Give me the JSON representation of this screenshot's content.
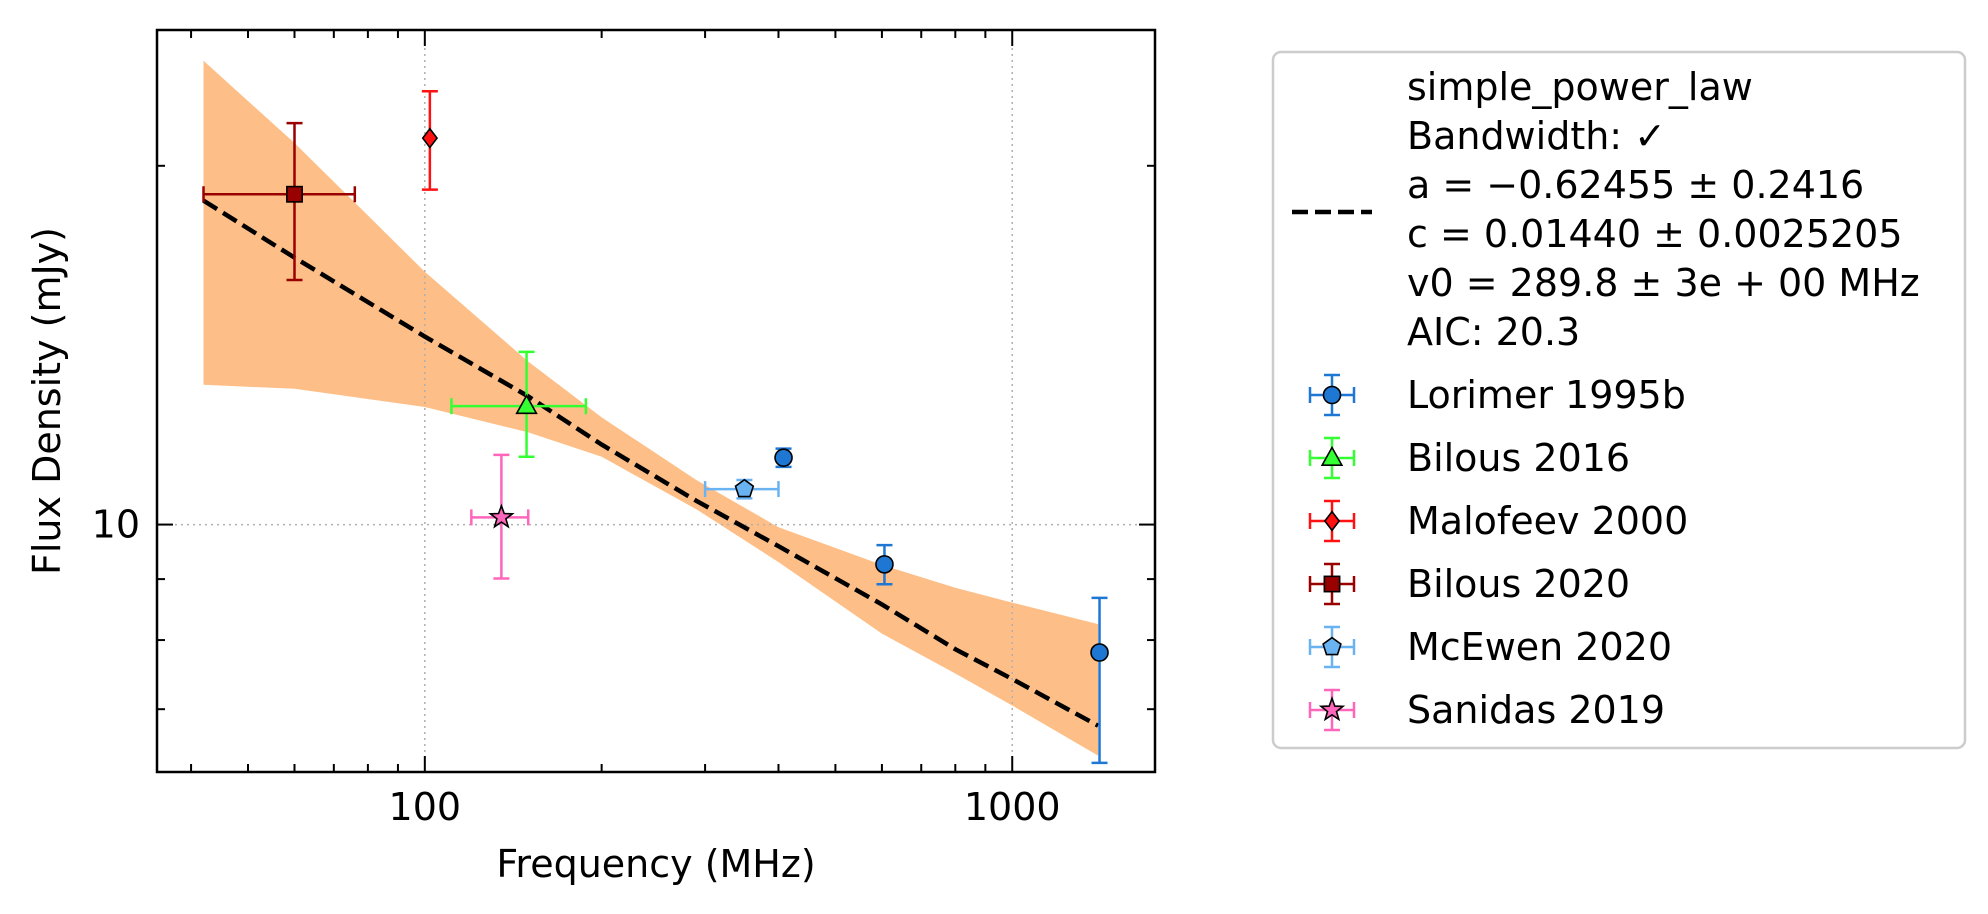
{
  "chart_data": {
    "type": "scatter",
    "xlabel": "Frequency (MHz)",
    "ylabel": "Flux Density (mJy)",
    "x_scale": "log",
    "y_scale": "log",
    "xlim": [
      35,
      1750
    ],
    "ylim": [
      6.2,
      26
    ],
    "x_ticks": [
      {
        "value": 100,
        "label": "100"
      },
      {
        "value": 1000,
        "label": "1000"
      }
    ],
    "y_ticks": [
      {
        "value": 10,
        "label": "10"
      }
    ],
    "grid": "major dotted",
    "legend_placement": "outside right",
    "fit": {
      "label_lines": [
        "simple_power_law",
        "Bandwidth: ✓",
        "a = −0.62455 ± 0.2416",
        "c = 0.01440 ± 0.0025205",
        "v0 = 289.8 ± 3e + 00 MHz",
        "AIC: 20.3"
      ],
      "color": "#000000",
      "x": [
        42,
        60,
        100,
        150,
        200,
        289.8,
        400,
        600,
        800,
        1000,
        1400
      ],
      "y": [
        18.7,
        16.75,
        14.38,
        12.81,
        11.67,
        10.47,
        9.59,
        8.57,
        7.86,
        7.42,
        6.78
      ],
      "band_color": "#fdbf87",
      "band_upper": [
        24.5,
        20.9,
        16.3,
        13.7,
        12.3,
        10.9,
        9.95,
        9.25,
        8.85,
        8.6,
        8.25
      ],
      "band_lower": [
        13.1,
        13.0,
        12.55,
        11.95,
        11.4,
        10.3,
        9.3,
        8.1,
        7.5,
        7.05,
        6.4
      ]
    },
    "series": [
      {
        "name": "Lorimer 1995b",
        "marker": "circle",
        "color": "#1f77d4",
        "points": [
          {
            "x": 408,
            "y": 11.38,
            "y_err": [
              0.2,
              0.2
            ]
          },
          {
            "x": 606,
            "y": 9.26,
            "y_err": [
              0.35,
              0.35
            ]
          },
          {
            "x": 1408,
            "y": 7.81,
            "y_err": [
              1.5,
              0.87
            ]
          }
        ]
      },
      {
        "name": "Bilous 2016",
        "marker": "triangle",
        "color": "#33ff33",
        "points": [
          {
            "x": 149,
            "y": 12.57,
            "y_err": [
              1.17,
              1.39
            ],
            "x_err": [
              38,
              39
            ]
          }
        ]
      },
      {
        "name": "Malofeev 2000",
        "marker": "diamond",
        "color": "#ff1111",
        "points": [
          {
            "x": 102,
            "y": 21.1,
            "y_err": [
              2.0,
              2.0
            ]
          }
        ]
      },
      {
        "name": "Bilous 2020",
        "marker": "square",
        "color": "#990000",
        "points": [
          {
            "x": 60,
            "y": 18.93,
            "y_err": [
              2.89,
              2.79
            ],
            "x_err": [
              18,
              16
            ]
          }
        ]
      },
      {
        "name": "McEwen 2020",
        "marker": "pentagon",
        "color": "#6ab3f2",
        "points": [
          {
            "x": 350,
            "y": 10.71,
            "y_err": [
              0.19,
              0.19
            ],
            "x_err": [
              50,
              50
            ]
          }
        ]
      },
      {
        "name": "Sanidas 2019",
        "marker": "star",
        "color": "#ff66bb",
        "points": [
          {
            "x": 135,
            "y": 10.14,
            "y_err": [
              1.13,
              1.3
            ],
            "x_err": [
              15,
              15
            ]
          }
        ]
      }
    ]
  }
}
